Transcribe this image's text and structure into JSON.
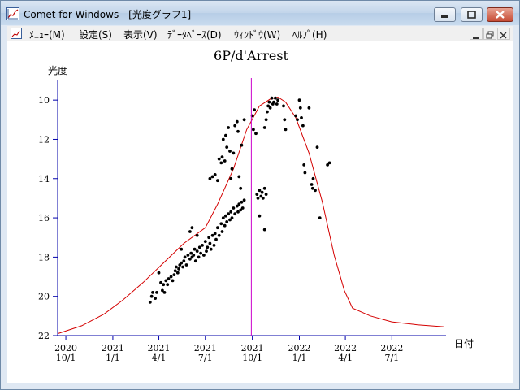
{
  "window": {
    "title": "Comet for Windows - [光度グラフ1]"
  },
  "menu": {
    "items": [
      "ﾒﾆｭｰ(M)",
      "設定(S)",
      "表示(V)",
      "ﾃﾞｰﾀﾍﾞｰｽ(D)",
      "ｳｨﾝﾄﾞｳ(W)",
      "ﾍﾙﾌﾟ(H)"
    ]
  },
  "colors": {
    "curve": "#d40000",
    "marker_line": "#cc00cc",
    "axis": "#0000aa",
    "points": "#000000"
  },
  "chart_data": {
    "type": "scatter",
    "title": "6P/d'Arrest",
    "ylabel": "光度",
    "xlabel": "日付",
    "y_inverted": true,
    "ylim": [
      22,
      9
    ],
    "xlim": [
      "2020-09-15",
      "2022-10-15"
    ],
    "y_ticks": [
      10,
      12,
      14,
      16,
      18,
      20,
      22
    ],
    "x_ticks": [
      {
        "date": "2020-10-01",
        "year": "2020",
        "md": "10/1"
      },
      {
        "date": "2021-01-01",
        "year": "2021",
        "md": "1/1"
      },
      {
        "date": "2021-04-01",
        "year": "2021",
        "md": "4/1"
      },
      {
        "date": "2021-07-01",
        "year": "2021",
        "md": "7/1"
      },
      {
        "date": "2021-10-01",
        "year": "2021",
        "md": "10/1"
      },
      {
        "date": "2022-01-01",
        "year": "2022",
        "md": "1/1"
      },
      {
        "date": "2022-04-01",
        "year": "2022",
        "md": "4/1"
      },
      {
        "date": "2022-07-01",
        "year": "2022",
        "md": "7/1"
      }
    ],
    "marker_date": "2021-09-29",
    "series": [
      {
        "kind": "curve",
        "points": [
          [
            "2020-09-15",
            21.9
          ],
          [
            "2020-11-01",
            21.5
          ],
          [
            "2020-12-15",
            20.9
          ],
          [
            "2021-01-20",
            20.2
          ],
          [
            "2021-03-01",
            19.3
          ],
          [
            "2021-04-10",
            18.3
          ],
          [
            "2021-05-20",
            17.3
          ],
          [
            "2021-07-01",
            16.5
          ],
          [
            "2021-07-25",
            15.3
          ],
          [
            "2021-08-25",
            13.5
          ],
          [
            "2021-09-20",
            11.5
          ],
          [
            "2021-10-15",
            10.3
          ],
          [
            "2021-11-05",
            9.95
          ],
          [
            "2021-11-20",
            9.85
          ],
          [
            "2021-12-05",
            10.1
          ],
          [
            "2021-12-25",
            10.9
          ],
          [
            "2022-01-20",
            12.7
          ],
          [
            "2022-02-15",
            15.2
          ],
          [
            "2022-03-10",
            17.9
          ],
          [
            "2022-03-30",
            19.7
          ],
          [
            "2022-04-15",
            20.6
          ],
          [
            "2022-05-20",
            21.0
          ],
          [
            "2022-07-01",
            21.3
          ],
          [
            "2022-08-20",
            21.45
          ],
          [
            "2022-10-10",
            21.55
          ]
        ]
      },
      {
        "kind": "observations",
        "points": [
          [
            "2021-03-15",
            20.3
          ],
          [
            "2021-03-18",
            20.0
          ],
          [
            "2021-03-20",
            19.8
          ],
          [
            "2021-03-25",
            20.1
          ],
          [
            "2021-03-28",
            19.8
          ],
          [
            "2021-04-01",
            18.8
          ],
          [
            "2021-04-05",
            19.3
          ],
          [
            "2021-04-08",
            19.7
          ],
          [
            "2021-04-10",
            19.4
          ],
          [
            "2021-04-12",
            19.8
          ],
          [
            "2021-04-15",
            19.2
          ],
          [
            "2021-04-18",
            19.4
          ],
          [
            "2021-04-20",
            19.1
          ],
          [
            "2021-04-25",
            19.0
          ],
          [
            "2021-04-28",
            19.2
          ],
          [
            "2021-05-01",
            18.9
          ],
          [
            "2021-05-03",
            18.7
          ],
          [
            "2021-05-05",
            18.5
          ],
          [
            "2021-05-08",
            18.8
          ],
          [
            "2021-05-10",
            18.6
          ],
          [
            "2021-05-12",
            18.4
          ],
          [
            "2021-05-15",
            17.6
          ],
          [
            "2021-05-15",
            18.3
          ],
          [
            "2021-05-18",
            18.5
          ],
          [
            "2021-05-20",
            18.2
          ],
          [
            "2021-05-22",
            18.0
          ],
          [
            "2021-05-25",
            18.4
          ],
          [
            "2021-05-28",
            17.9
          ],
          [
            "2021-06-01",
            18.1
          ],
          [
            "2021-06-01",
            16.7
          ],
          [
            "2021-06-03",
            17.8
          ],
          [
            "2021-06-05",
            16.5
          ],
          [
            "2021-06-05",
            18.0
          ],
          [
            "2021-06-08",
            17.9
          ],
          [
            "2021-06-10",
            17.6
          ],
          [
            "2021-06-12",
            18.2
          ],
          [
            "2021-06-15",
            17.7
          ],
          [
            "2021-06-15",
            16.9
          ],
          [
            "2021-06-18",
            18.0
          ],
          [
            "2021-06-20",
            17.5
          ],
          [
            "2021-06-22",
            17.8
          ],
          [
            "2021-06-25",
            17.4
          ],
          [
            "2021-06-28",
            17.9
          ],
          [
            "2021-07-01",
            17.2
          ],
          [
            "2021-07-03",
            17.7
          ],
          [
            "2021-07-05",
            17.5
          ],
          [
            "2021-07-08",
            17.0
          ],
          [
            "2021-07-10",
            17.3
          ],
          [
            "2021-07-12",
            17.6
          ],
          [
            "2021-07-15",
            16.9
          ],
          [
            "2021-07-18",
            17.4
          ],
          [
            "2021-07-20",
            16.8
          ],
          [
            "2021-07-22",
            17.1
          ],
          [
            "2021-07-25",
            16.5
          ],
          [
            "2021-07-28",
            16.9
          ],
          [
            "2021-08-01",
            16.3
          ],
          [
            "2021-08-03",
            16.7
          ],
          [
            "2021-08-05",
            16.0
          ],
          [
            "2021-08-08",
            16.4
          ],
          [
            "2021-08-10",
            15.9
          ],
          [
            "2021-08-12",
            16.2
          ],
          [
            "2021-08-15",
            15.8
          ],
          [
            "2021-08-18",
            16.1
          ],
          [
            "2021-08-20",
            15.7
          ],
          [
            "2021-08-22",
            16.0
          ],
          [
            "2021-08-25",
            15.5
          ],
          [
            "2021-08-28",
            15.8
          ],
          [
            "2021-09-01",
            15.4
          ],
          [
            "2021-09-03",
            15.7
          ],
          [
            "2021-09-05",
            15.3
          ],
          [
            "2021-09-08",
            15.6
          ],
          [
            "2021-09-10",
            15.2
          ],
          [
            "2021-09-12",
            15.5
          ],
          [
            "2021-09-15",
            15.1
          ],
          [
            "2021-07-10",
            14.0
          ],
          [
            "2021-07-15",
            13.9
          ],
          [
            "2021-07-20",
            13.8
          ],
          [
            "2021-07-25",
            14.1
          ],
          [
            "2021-07-28",
            13.0
          ],
          [
            "2021-08-01",
            13.2
          ],
          [
            "2021-08-03",
            12.9
          ],
          [
            "2021-08-05",
            12.0
          ],
          [
            "2021-08-08",
            13.1
          ],
          [
            "2021-08-10",
            11.8
          ],
          [
            "2021-08-12",
            12.4
          ],
          [
            "2021-08-15",
            11.4
          ],
          [
            "2021-08-18",
            12.6
          ],
          [
            "2021-08-20",
            14.0
          ],
          [
            "2021-08-22",
            13.5
          ],
          [
            "2021-08-25",
            12.7
          ],
          [
            "2021-08-28",
            11.3
          ],
          [
            "2021-09-01",
            11.1
          ],
          [
            "2021-09-03",
            11.6
          ],
          [
            "2021-09-05",
            13.9
          ],
          [
            "2021-09-08",
            14.5
          ],
          [
            "2021-09-10",
            12.3
          ],
          [
            "2021-09-15",
            11.0
          ],
          [
            "2021-10-01",
            10.8
          ],
          [
            "2021-10-03",
            11.5
          ],
          [
            "2021-10-05",
            10.5
          ],
          [
            "2021-10-08",
            11.7
          ],
          [
            "2021-10-10",
            14.8
          ],
          [
            "2021-10-12",
            15.0
          ],
          [
            "2021-10-15",
            14.6
          ],
          [
            "2021-10-15",
            15.9
          ],
          [
            "2021-10-18",
            14.9
          ],
          [
            "2021-10-20",
            14.7
          ],
          [
            "2021-10-22",
            15.0
          ],
          [
            "2021-10-25",
            14.5
          ],
          [
            "2021-10-25",
            16.6
          ],
          [
            "2021-10-28",
            14.8
          ],
          [
            "2021-10-25",
            11.4
          ],
          [
            "2021-10-28",
            11.0
          ],
          [
            "2021-10-30",
            10.6
          ],
          [
            "2021-11-01",
            10.3
          ],
          [
            "2021-11-03",
            10.1
          ],
          [
            "2021-11-05",
            10.4
          ],
          [
            "2021-11-08",
            9.9
          ],
          [
            "2021-11-10",
            10.2
          ],
          [
            "2021-11-12",
            10.1
          ],
          [
            "2021-11-15",
            9.9
          ],
          [
            "2021-11-18",
            10.2
          ],
          [
            "2021-11-20",
            10.0
          ],
          [
            "2021-12-01",
            10.3
          ],
          [
            "2021-12-03",
            11.0
          ],
          [
            "2021-12-05",
            11.5
          ],
          [
            "2021-12-25",
            10.8
          ],
          [
            "2021-12-28",
            11.0
          ],
          [
            "2022-01-01",
            10.0
          ],
          [
            "2022-01-03",
            10.4
          ],
          [
            "2022-01-05",
            10.9
          ],
          [
            "2022-01-08",
            11.3
          ],
          [
            "2022-01-10",
            13.3
          ],
          [
            "2022-01-12",
            13.7
          ],
          [
            "2022-01-20",
            10.4
          ],
          [
            "2022-01-25",
            14.3
          ],
          [
            "2022-01-27",
            14.5
          ],
          [
            "2022-01-28",
            14.0
          ],
          [
            "2022-02-01",
            14.6
          ],
          [
            "2022-02-05",
            12.4
          ],
          [
            "2022-02-10",
            16.0
          ],
          [
            "2022-02-25",
            13.3
          ],
          [
            "2022-03-01",
            13.2
          ]
        ]
      }
    ]
  }
}
